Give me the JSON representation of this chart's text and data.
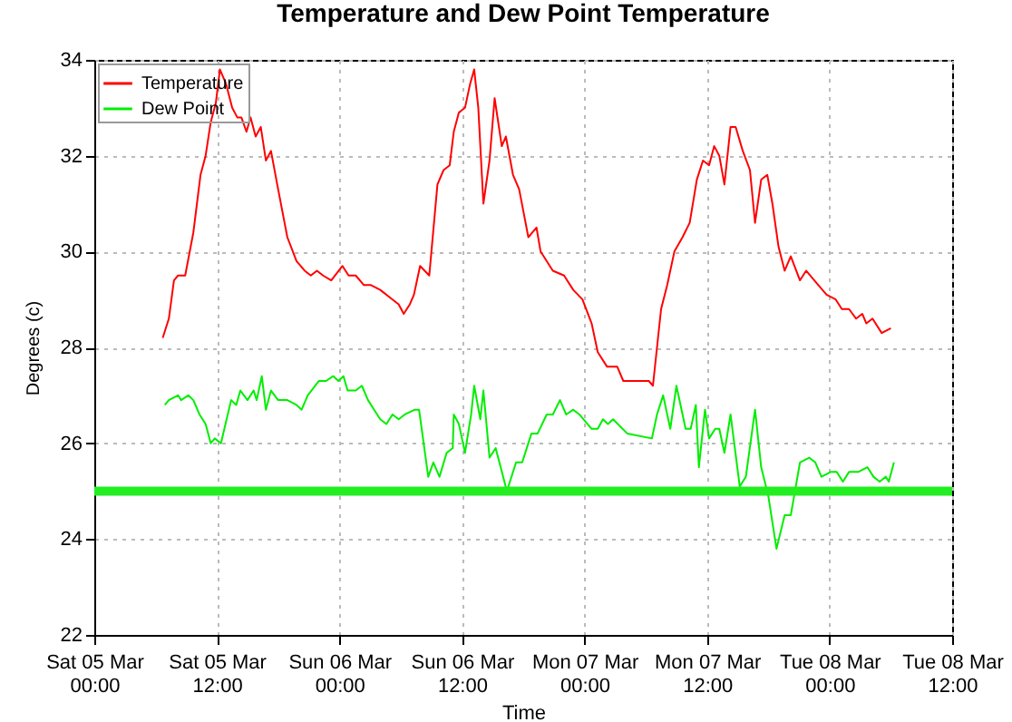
{
  "chart_data": {
    "type": "line",
    "title": "Temperature and Dew Point Temperature",
    "xlabel": "Time",
    "ylabel": "Degrees (c)",
    "xlim": [
      "--03-05T00:00",
      "--03-08T12:00"
    ],
    "xticks": [
      {
        "value": "--03-05T00:00",
        "label": "Sat 05 Mar\n00:00"
      },
      {
        "value": "--03-05T12:00",
        "label": "Sat 05 Mar\n12:00"
      },
      {
        "value": "--03-06T00:00",
        "label": "Sun 06 Mar\n00:00"
      },
      {
        "value": "--03-06T12:00",
        "label": "Sun 06 Mar\n12:00"
      },
      {
        "value": "--03-07T00:00",
        "label": "Mon 07 Mar\n00:00"
      },
      {
        "value": "--03-07T12:00",
        "label": "Mon 07 Mar\n12:00"
      },
      {
        "value": "--03-08T00:00",
        "label": "Tue 08 Mar\n00:00"
      },
      {
        "value": "--03-08T12:00",
        "label": "Tue 08 Mar\n12:00"
      }
    ],
    "ylim": [
      22,
      34
    ],
    "yticks": [
      22,
      24,
      26,
      28,
      30,
      32,
      34
    ],
    "grid": true,
    "legend": "top left",
    "marker": "none",
    "line_style": "solid",
    "series": [
      {
        "name": "Temperature",
        "color": "#ff0000",
        "x": [
          "--03-05T06:42",
          "--03-05T07:18",
          "--03-05T07:48",
          "--03-05T08:12",
          "--03-05T08:54",
          "--03-05T09:42",
          "--03-05T10:24",
          "--03-05T10:54",
          "--03-05T11:24",
          "--03-05T11:54",
          "--03-05T12:18",
          "--03-05T12:54",
          "--03-05T13:30",
          "--03-05T14:00",
          "--03-05T14:24",
          "--03-05T14:54",
          "--03-05T15:18",
          "--03-05T15:48",
          "--03-05T16:18",
          "--03-05T16:48",
          "--03-05T17:18",
          "--03-05T18:00",
          "--03-05T18:54",
          "--03-05T19:48",
          "--03-05T20:36",
          "--03-05T21:12",
          "--03-05T21:48",
          "--03-05T22:24",
          "--03-05T23:12",
          "--03-06T00:18",
          "--03-06T00:54",
          "--03-06T01:36",
          "--03-06T02:24",
          "--03-06T03:06",
          "--03-06T04:00",
          "--03-06T05:12",
          "--03-06T05:48",
          "--03-06T06:18",
          "--03-06T06:54",
          "--03-06T07:18",
          "--03-06T07:54",
          "--03-06T08:48",
          "--03-06T09:36",
          "--03-06T10:12",
          "--03-06T10:48",
          "--03-06T11:12",
          "--03-06T11:42",
          "--03-06T12:18",
          "--03-06T12:48",
          "--03-06T13:12",
          "--03-06T13:36",
          "--03-06T14:06",
          "--03-06T14:42",
          "--03-06T15:12",
          "--03-06T15:54",
          "--03-06T16:18",
          "--03-06T17:00",
          "--03-06T17:36",
          "--03-06T18:30",
          "--03-06T19:18",
          "--03-06T19:42",
          "--03-06T20:54",
          "--03-06T22:00",
          "--03-06T22:54",
          "--03-06T23:48",
          "--03-07T00:42",
          "--03-07T01:18",
          "--03-07T02:12",
          "--03-07T03:12",
          "--03-07T03:48",
          "--03-07T06:18",
          "--03-07T06:42",
          "--03-07T07:30",
          "--03-07T08:06",
          "--03-07T08:48",
          "--03-07T09:36",
          "--03-07T10:18",
          "--03-07T11:00",
          "--03-07T11:36",
          "--03-07T12:12",
          "--03-07T12:42",
          "--03-07T13:12",
          "--03-07T13:42",
          "--03-07T14:18",
          "--03-07T14:48",
          "--03-07T15:30",
          "--03-07T16:12",
          "--03-07T16:42",
          "--03-07T17:18",
          "--03-07T17:54",
          "--03-07T18:24",
          "--03-07T19:00",
          "--03-07T19:36",
          "--03-07T20:12",
          "--03-07T21:06",
          "--03-07T21:42",
          "--03-07T22:54",
          "--03-07T23:42",
          "--03-08T00:36",
          "--03-08T01:12",
          "--03-08T01:54",
          "--03-08T02:36",
          "--03-08T03:12",
          "--03-08T03:36",
          "--03-08T04:12",
          "--03-08T05:06",
          "--03-08T06:00"
        ],
        "values": [
          28.2,
          28.6,
          29.4,
          29.5,
          29.5,
          30.4,
          31.6,
          32.0,
          32.7,
          33.1,
          33.8,
          33.5,
          33.0,
          32.8,
          32.8,
          32.5,
          32.8,
          32.4,
          32.6,
          31.9,
          32.1,
          31.3,
          30.3,
          29.8,
          29.6,
          29.5,
          29.6,
          29.5,
          29.4,
          29.7,
          29.5,
          29.5,
          29.3,
          29.3,
          29.2,
          29.0,
          28.9,
          28.7,
          28.9,
          29.1,
          29.7,
          29.5,
          31.4,
          31.7,
          31.8,
          32.5,
          32.9,
          33.0,
          33.5,
          33.8,
          33.0,
          31.0,
          31.9,
          33.2,
          32.2,
          32.4,
          31.6,
          31.3,
          30.3,
          30.5,
          30.0,
          29.6,
          29.5,
          29.2,
          29.0,
          28.5,
          27.9,
          27.6,
          27.6,
          27.3,
          27.3,
          27.2,
          28.8,
          29.3,
          30.0,
          30.3,
          30.6,
          31.5,
          31.9,
          31.8,
          32.2,
          32.0,
          31.4,
          32.6,
          32.6,
          32.1,
          31.7,
          30.6,
          31.5,
          31.6,
          31.0,
          30.1,
          29.6,
          29.9,
          29.4,
          29.6,
          29.3,
          29.1,
          29.0,
          28.8,
          28.8,
          28.6,
          28.7,
          28.5,
          28.6,
          28.3,
          28.4
        ]
      },
      {
        "name": "Dew Point",
        "color": "#00ee00",
        "x": [
          "--03-05T06:54",
          "--03-05T07:18",
          "--03-05T08:12",
          "--03-05T08:30",
          "--03-05T09:12",
          "--03-05T09:42",
          "--03-05T10:18",
          "--03-05T10:54",
          "--03-05T11:24",
          "--03-05T11:48",
          "--03-05T12:24",
          "--03-05T13:24",
          "--03-05T13:54",
          "--03-05T14:18",
          "--03-05T15:00",
          "--03-05T15:36",
          "--03-05T15:54",
          "--03-05T16:24",
          "--03-05T16:48",
          "--03-05T17:18",
          "--03-05T18:00",
          "--03-05T18:54",
          "--03-05T19:48",
          "--03-05T20:18",
          "--03-05T20:54",
          "--03-05T22:00",
          "--03-05T22:42",
          "--03-05T23:24",
          "--03-05T23:54",
          "--03-06T00:24",
          "--03-06T00:48",
          "--03-06T01:36",
          "--03-06T02:12",
          "--03-06T02:48",
          "--03-06T03:24",
          "--03-06T04:00",
          "--03-06T04:36",
          "--03-06T05:12",
          "--03-06T05:48",
          "--03-06T06:24",
          "--03-06T07:24",
          "--03-06T07:48",
          "--03-06T08:42",
          "--03-06T09:12",
          "--03-06T09:48",
          "--03-06T10:30",
          "--03-06T11:06",
          "--03-06T11:12",
          "--03-06T11:42",
          "--03-06T12:18",
          "--03-06T12:54",
          "--03-06T13:12",
          "--03-06T13:48",
          "--03-06T14:06",
          "--03-06T14:42",
          "--03-06T15:18",
          "--03-06T16:24",
          "--03-06T17:18",
          "--03-06T17:54",
          "--03-06T18:48",
          "--03-06T19:24",
          "--03-06T20:18",
          "--03-06T20:54",
          "--03-06T21:36",
          "--03-06T22:12",
          "--03-06T22:54",
          "--03-06T23:30",
          "--03-07T00:42",
          "--03-07T01:18",
          "--03-07T01:48",
          "--03-07T02:18",
          "--03-07T02:48",
          "--03-07T04:12",
          "--03-07T06:36",
          "--03-07T07:06",
          "--03-07T07:42",
          "--03-07T08:24",
          "--03-07T09:00",
          "--03-07T09:54",
          "--03-07T10:24",
          "--03-07T10:54",
          "--03-07T11:12",
          "--03-07T11:48",
          "--03-07T12:12",
          "--03-07T12:48",
          "--03-07T13:12",
          "--03-07T13:42",
          "--03-07T14:18",
          "--03-07T15:12",
          "--03-07T15:48",
          "--03-07T16:42",
          "--03-07T17:18",
          "--03-07T18:00",
          "--03-07T18:48",
          "--03-07T19:36",
          "--03-07T20:12",
          "--03-07T21:06",
          "--03-07T22:00",
          "--03-07T22:36",
          "--03-07T23:12",
          "--03-08T00:06",
          "--03-08T00:42",
          "--03-08T01:18",
          "--03-08T01:54",
          "--03-08T02:48",
          "--03-08T03:42",
          "--03-08T04:18",
          "--03-08T04:54",
          "--03-08T05:30",
          "--03-08T05:48",
          "--03-08T06:18"
        ],
        "values": [
          26.8,
          26.9,
          27.0,
          26.9,
          27.0,
          26.9,
          26.6,
          26.4,
          26.0,
          26.1,
          26.0,
          26.9,
          26.8,
          27.1,
          26.9,
          27.1,
          26.9,
          27.4,
          26.7,
          27.1,
          26.9,
          26.9,
          26.8,
          26.7,
          27.0,
          27.3,
          27.3,
          27.4,
          27.3,
          27.4,
          27.1,
          27.1,
          27.2,
          26.9,
          26.7,
          26.5,
          26.4,
          26.6,
          26.5,
          26.6,
          26.7,
          26.7,
          25.3,
          25.6,
          25.3,
          25.8,
          25.9,
          26.6,
          26.4,
          25.8,
          26.6,
          27.2,
          26.5,
          27.1,
          25.7,
          25.9,
          25.0,
          25.6,
          25.6,
          26.2,
          26.2,
          26.6,
          26.6,
          26.9,
          26.6,
          26.7,
          26.6,
          26.3,
          26.3,
          26.5,
          26.4,
          26.5,
          26.2,
          26.1,
          26.6,
          27.0,
          26.3,
          27.2,
          26.3,
          26.3,
          26.8,
          25.5,
          26.7,
          26.1,
          26.3,
          26.3,
          25.8,
          26.6,
          25.1,
          25.3,
          26.7,
          25.5,
          24.9,
          23.8,
          24.5,
          24.5,
          25.6,
          25.7,
          25.6,
          25.3,
          25.4,
          25.4,
          25.2,
          25.4,
          25.4,
          25.5,
          25.3,
          25.2,
          25.3,
          25.2,
          25.6
        ]
      }
    ],
    "ref_lines": [
      {
        "axis": "y",
        "value": 25,
        "color": "#22ee22"
      }
    ]
  }
}
